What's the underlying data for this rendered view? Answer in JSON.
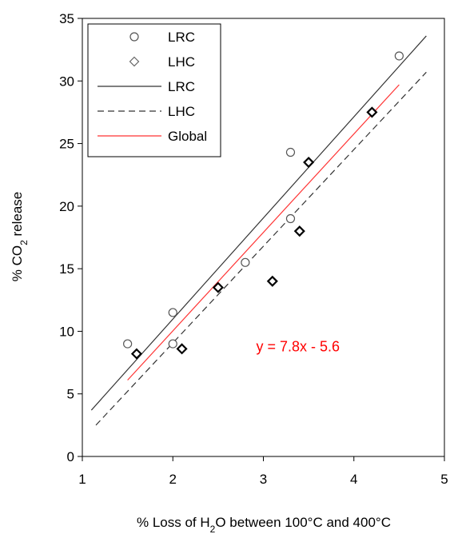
{
  "chart_data": {
    "type": "scatter",
    "xlabel_parts": [
      "% Loss of H",
      "2",
      "O between 100°C and 400°C"
    ],
    "ylabel_parts": [
      "% CO",
      "2",
      " release"
    ],
    "xlim": [
      1,
      5
    ],
    "ylim": [
      0,
      35
    ],
    "x_ticks": [
      "1",
      "2",
      "3",
      "4",
      "5"
    ],
    "y_ticks": [
      "0",
      "5",
      "10",
      "15",
      "20",
      "25",
      "30",
      "35"
    ],
    "grid": false,
    "legend_position": "top-left",
    "series": [
      {
        "name": "LRC",
        "kind": "points",
        "marker": "circle",
        "color": "#555555",
        "points": [
          {
            "x": 1.5,
            "y": 9.0
          },
          {
            "x": 2.0,
            "y": 11.5
          },
          {
            "x": 2.0,
            "y": 9.0
          },
          {
            "x": 2.8,
            "y": 15.5
          },
          {
            "x": 3.3,
            "y": 24.3
          },
          {
            "x": 3.3,
            "y": 19.0
          },
          {
            "x": 4.5,
            "y": 32.0
          }
        ]
      },
      {
        "name": "LHC",
        "kind": "points",
        "marker": "diamond",
        "color": "#000000",
        "points": [
          {
            "x": 1.6,
            "y": 8.2
          },
          {
            "x": 2.1,
            "y": 8.6
          },
          {
            "x": 2.5,
            "y": 13.5
          },
          {
            "x": 3.1,
            "y": 14.0
          },
          {
            "x": 3.4,
            "y": 18.0
          },
          {
            "x": 3.5,
            "y": 23.5
          },
          {
            "x": 4.2,
            "y": 27.5
          }
        ]
      },
      {
        "name": "LRC",
        "kind": "line",
        "style": "solid",
        "color": "#333333",
        "points": [
          {
            "x": 1.1,
            "y": 3.7
          },
          {
            "x": 4.8,
            "y": 33.6
          }
        ]
      },
      {
        "name": "LHC",
        "kind": "line",
        "style": "dashed",
        "color": "#333333",
        "points": [
          {
            "x": 1.15,
            "y": 2.5
          },
          {
            "x": 4.8,
            "y": 30.7
          }
        ]
      },
      {
        "name": "Global",
        "kind": "line",
        "style": "solid",
        "color": "#ff3333",
        "points": [
          {
            "x": 1.5,
            "y": 6.1
          },
          {
            "x": 4.5,
            "y": 29.7
          }
        ]
      }
    ],
    "annotations": [
      {
        "text": "y = 7.8x - 5.6",
        "x": 2.92,
        "y": 8.4,
        "color": "#ff0000"
      }
    ]
  }
}
